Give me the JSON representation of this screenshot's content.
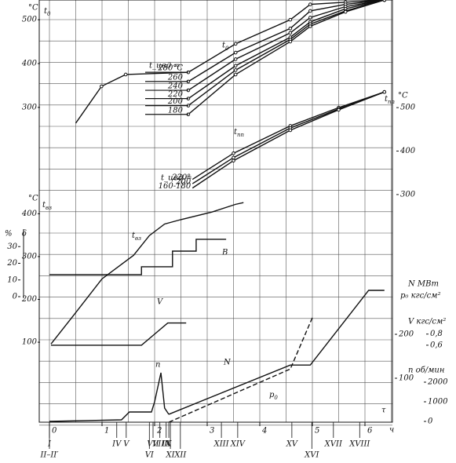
{
  "chart_data": {
    "type": "line",
    "xlim": [
      0,
      6.6
    ],
    "xticks": [
      0,
      1,
      2,
      3,
      4,
      5,
      6
    ],
    "x_unit": {
      "symbol": "τ",
      "unit": "ч"
    },
    "axes": {
      "A": {
        "ylim": [
          280,
          545
        ],
        "yticks": [
          300,
          400,
          500
        ],
        "unit": "°C",
        "label": {
          "text": "t",
          "sub": "0"
        }
      },
      "B": {
        "ylim": [
          280,
          540
        ],
        "yticks": [
          300,
          400,
          500
        ],
        "unit": "°C",
        "label": {
          "text": "t",
          "sub": "пп"
        }
      },
      "C": {
        "ylim": [
          80,
          430
        ],
        "yticks": [
          100,
          200,
          300,
          400
        ],
        "unit": "°C",
        "label": {
          "text": "t",
          "sub": "вз"
        }
      },
      "D": {
        "ylim": [
          0,
          300
        ],
        "yticks": [
          100,
          200
        ],
        "unit": "N МВт",
        "unit2": "p₀ кгс/см²"
      },
      "E": {
        "ylim": [
          0,
          3000
        ],
        "yticks": [
          0,
          1000,
          2000
        ],
        "unit": "n об/мин"
      },
      "F": {
        "ylim": [
          0,
          40
        ],
        "yticks": [
          0,
          10,
          20,
          30
        ],
        "unit": "%",
        "unit2": "δ"
      },
      "V": {
        "ylim": [
          0.5,
          1.05
        ],
        "yticks": [
          {
            "value": 0.6,
            "label": "0,6"
          },
          {
            "value": 0.8,
            "label": "0,8"
          }
        ],
        "unit": "V кгс/см²"
      }
    },
    "group_labels": {
      "t0": "t_цвд =",
      "tpp": "t_цвд ="
    },
    "series": [
      {
        "name": "280°C",
        "group": "t0",
        "axis": "A",
        "color": "#111",
        "x": [
          0.5,
          0.99,
          1.45,
          2.64,
          3.54,
          4.58,
          4.96,
          5.63,
          6.37
        ],
        "values": [
          264,
          348,
          375,
          380,
          445,
          500,
          535,
          540,
          545
        ]
      },
      {
        "name": "260",
        "group": "t0",
        "axis": "A",
        "color": "#111",
        "x": [
          0.5,
          0.99,
          1.45,
          2.64,
          3.54,
          4.58,
          4.96,
          5.63,
          6.37
        ],
        "values": [
          null,
          null,
          null,
          359,
          425,
          480,
          520,
          535,
          545
        ]
      },
      {
        "name": "240",
        "group": "t0",
        "axis": "A",
        "color": "#111",
        "x": [
          0.5,
          0.99,
          1.45,
          2.64,
          3.54,
          4.58,
          4.96,
          5.63,
          6.37
        ],
        "values": [
          null,
          null,
          null,
          339,
          410,
          470,
          505,
          530,
          545
        ]
      },
      {
        "name": "220",
        "group": "t0",
        "axis": "A",
        "color": "#111",
        "x": [
          0.5,
          0.99,
          1.45,
          2.64,
          3.54,
          4.58,
          4.96,
          5.63,
          6.37
        ],
        "values": [
          null,
          null,
          null,
          320,
          395,
          460,
          495,
          525,
          545
        ]
      },
      {
        "name": "200",
        "group": "t0",
        "axis": "A",
        "color": "#111",
        "x": [
          0.5,
          0.99,
          1.45,
          2.64,
          3.54,
          4.58,
          4.96,
          5.63,
          6.37
        ],
        "values": [
          null,
          null,
          null,
          304,
          385,
          455,
          490,
          520,
          545
        ]
      },
      {
        "name": "180",
        "group": "t0",
        "axis": "A",
        "color": "#111",
        "x": [
          0.5,
          0.99,
          1.45,
          2.64,
          3.54,
          4.58,
          4.96,
          5.63,
          6.37
        ],
        "values": [
          null,
          null,
          null,
          284,
          375,
          450,
          485,
          518,
          545
        ]
      },
      {
        "name": "220°",
        "group": "tpp",
        "axis": "B",
        "color": "#111",
        "x": [
          2.72,
          3.5,
          4.58,
          5.5,
          6.37
        ],
        "values": [
          335,
          395,
          458,
          500,
          536
        ]
      },
      {
        "name": "200",
        "group": "tpp",
        "axis": "B",
        "color": "#111",
        "x": [
          2.72,
          3.5,
          4.58,
          5.5,
          6.37
        ],
        "values": [
          325,
          385,
          453,
          497,
          536
        ]
      },
      {
        "name": "160-180",
        "group": "tpp",
        "axis": "B",
        "color": "#111",
        "x": [
          2.72,
          3.5,
          4.58,
          5.5,
          6.37
        ],
        "values": [
          315,
          378,
          448,
          495,
          536
        ]
      },
      {
        "name": {
          "text": "t",
          "sub": "вз"
        },
        "axis": "C",
        "color": "#111",
        "x": [
          0.03,
          0.48,
          1.0,
          1.6,
          1.9,
          2.19,
          2.49,
          3.09,
          3.54,
          3.69
        ],
        "values": [
          96,
          166,
          248,
          303,
          349,
          376,
          386,
          404,
          422,
          426
        ]
      },
      {
        "name": "N",
        "axis": "D",
        "color": "#111",
        "x": [
          2.27,
          4.58,
          4.96,
          6.07,
          6.37
        ],
        "values": [
          18,
          130,
          130,
          300,
          300
        ]
      },
      {
        "name": {
          "text": "p",
          "sub": "0"
        },
        "axis": "D",
        "color": "#111",
        "dash": true,
        "x": [
          2.27,
          4.58,
          5.0
        ],
        "values": [
          0,
          121,
          238
        ]
      },
      {
        "name": "n",
        "axis": "E",
        "color": "#111",
        "x": [
          0,
          1.37,
          1.52,
          1.94,
          2.0,
          2.12,
          2.19,
          2.27
        ],
        "values": [
          0,
          80,
          480,
          480,
          1000,
          2480,
          680,
          360
        ]
      },
      {
        "name": "V",
        "axis": "V",
        "color": "#111",
        "x": [
          0.03,
          1.75,
          2.0,
          2.25,
          2.6
        ],
        "values": [
          0.6,
          0.6,
          0.8,
          1.0,
          1.0
        ]
      },
      {
        "name": "B",
        "axis": "F",
        "color": "#111",
        "step": true,
        "x": [
          0,
          1.75,
          2.34,
          2.79,
          3.36
        ],
        "values": [
          13.2,
          17.9,
          27.3,
          34.4,
          34.4
        ]
      }
    ],
    "events": [
      {
        "x": 0,
        "label": "I"
      },
      {
        "x": 0,
        "label": "II–II′"
      },
      {
        "x": 1.28,
        "label": "IV"
      },
      {
        "x": 1.46,
        "label": "V"
      },
      {
        "x": 1.9,
        "label": "VI"
      },
      {
        "x": 1.97,
        "label": "VII"
      },
      {
        "x": 2.1,
        "label": "VIII"
      },
      {
        "x": 2.22,
        "label": "IX"
      },
      {
        "x": 2.27,
        "label": "X"
      },
      {
        "x": 2.3,
        "label": "XI"
      },
      {
        "x": 2.49,
        "label": "XII"
      },
      {
        "x": 3.27,
        "label": "XIII"
      },
      {
        "x": 3.58,
        "label": "XIV"
      },
      {
        "x": 4.61,
        "label": "XV"
      },
      {
        "x": 4.99,
        "label": "XVI"
      },
      {
        "x": 5.4,
        "label": "XVII"
      },
      {
        "x": 5.9,
        "label": "XVIII"
      }
    ]
  }
}
